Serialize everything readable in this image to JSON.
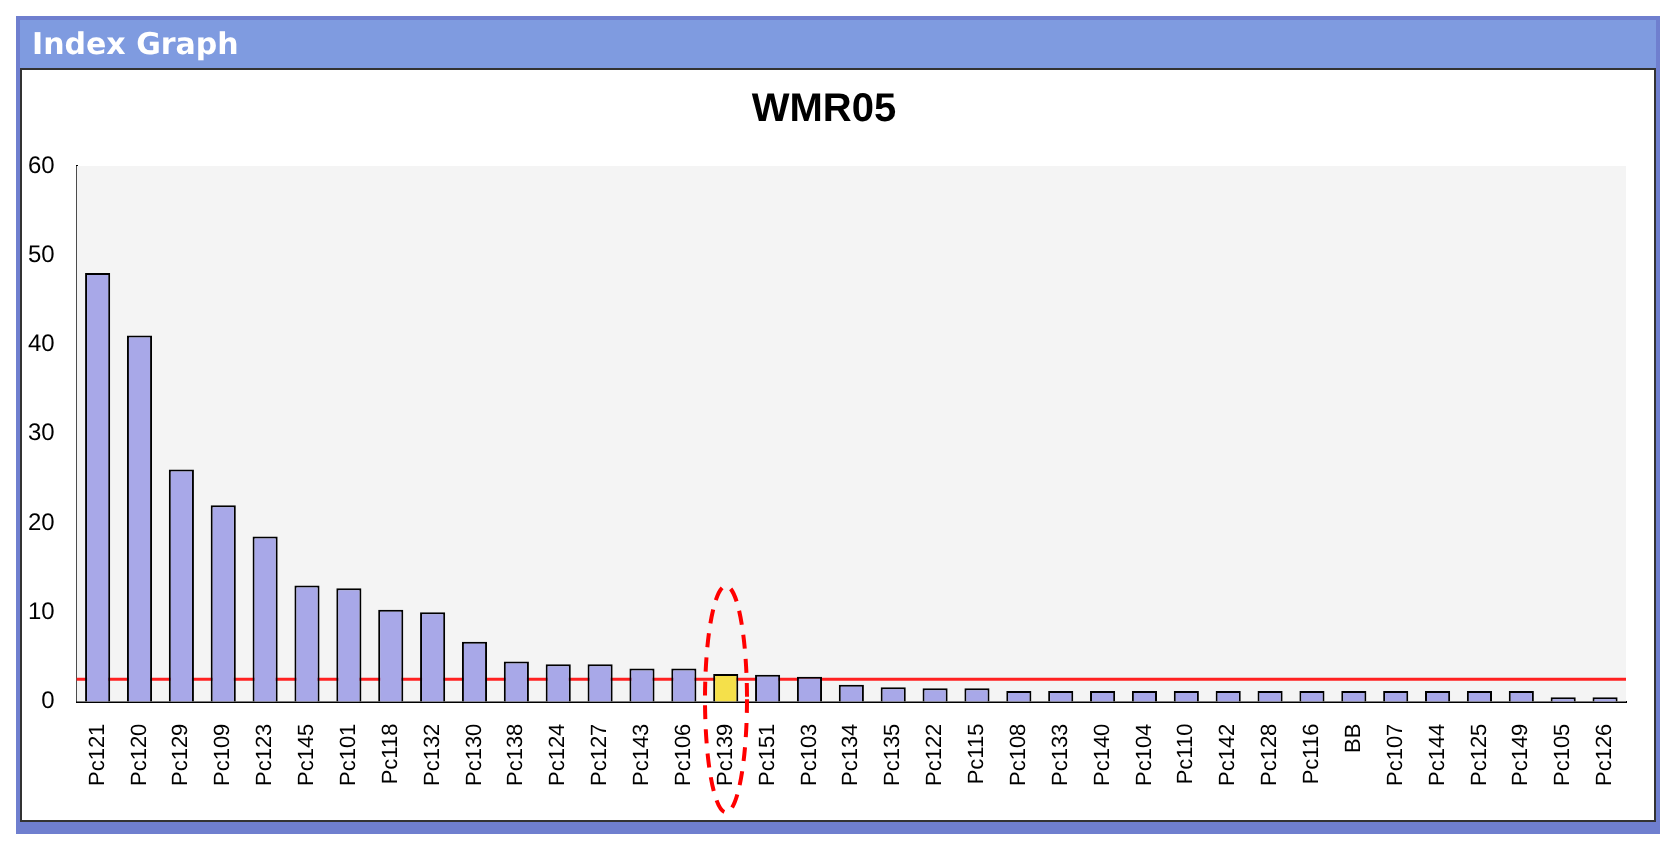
{
  "chart_data": {
    "type": "bar",
    "title": "WMR05",
    "annotations": [
      "Index Graph"
    ],
    "categories": [
      "Pc121",
      "Pc120",
      "Pc129",
      "Pc109",
      "Pc123",
      "Pc145",
      "Pc101",
      "Pc118",
      "Pc132",
      "Pc130",
      "Pc138",
      "Pc124",
      "Pc127",
      "Pc143",
      "Pc106",
      "Pc139",
      "Pc151",
      "Pc103",
      "Pc134",
      "Pc135",
      "Pc122",
      "Pc115",
      "Pc108",
      "Pc133",
      "Pc140",
      "Pc104",
      "Pc110",
      "Pc142",
      "Pc128",
      "Pc116",
      "BB",
      "Pc107",
      "Pc144",
      "Pc125",
      "Pc149",
      "Pc105",
      "Pc126"
    ],
    "values": [
      48,
      41,
      26,
      22,
      18.5,
      13,
      12.7,
      10.3,
      10,
      6.7,
      4.5,
      4.2,
      4.2,
      3.7,
      3.7,
      3.1,
      3,
      2.8,
      1.9,
      1.6,
      1.5,
      1.5,
      1.2,
      1.2,
      1.2,
      1.2,
      1.2,
      1.2,
      1.2,
      1.2,
      1.2,
      1.2,
      1.2,
      1.2,
      1.2,
      0.5,
      0.5
    ],
    "colors": [
      "#a8a8e8",
      "#a8a8e8",
      "#a8a8e8",
      "#a8a8e8",
      "#a8a8e8",
      "#a8a8e8",
      "#a8a8e8",
      "#a8a8e8",
      "#a8a8e8",
      "#a8a8e8",
      "#a8a8e8",
      "#a8a8e8",
      "#a8a8e8",
      "#a8a8e8",
      "#a8a8e8",
      "#f5e04a",
      "#a8a8e8",
      "#a8a8e8",
      "#a8a8e8",
      "#a8a8e8",
      "#a8a8e8",
      "#a8a8e8",
      "#a8a8e8",
      "#a8a8e8",
      "#a8a8e8",
      "#a8a8e8",
      "#a8a8e8",
      "#a8a8e8",
      "#a8a8e8",
      "#a8a8e8",
      "#a8a8e8",
      "#a8a8e8",
      "#a8a8e8",
      "#a8a8e8",
      "#a8a8e8",
      "#a8a8e8",
      "#a8a8e8"
    ],
    "ylim": [
      0,
      60
    ],
    "yticks": [
      0,
      10,
      20,
      30,
      40,
      50,
      60
    ],
    "ref_lines": [
      {
        "axis": "y",
        "value": 2.5,
        "color": "#ff2020"
      }
    ],
    "grid": false,
    "legend": false
  }
}
